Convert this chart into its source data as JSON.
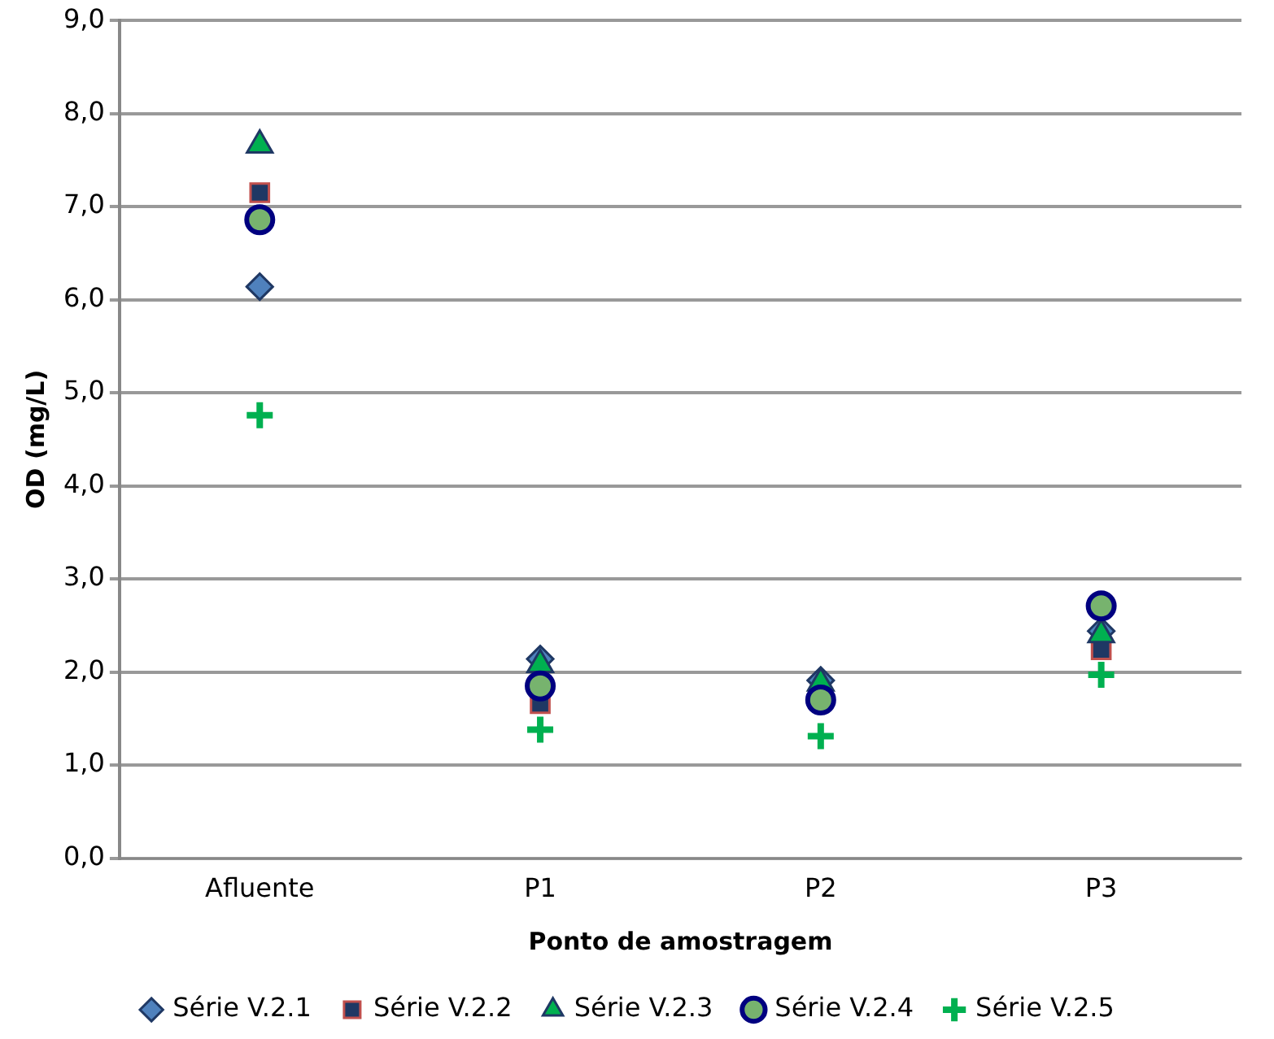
{
  "chart_data": {
    "type": "scatter",
    "xlabel": "Ponto de amostragem",
    "ylabel": "OD (mg/L)",
    "categories": [
      "Afluente",
      "P1",
      "P2",
      "P3"
    ],
    "ylim": [
      0,
      9
    ],
    "yticks": [
      {
        "value": 0,
        "label": "0,0"
      },
      {
        "value": 1,
        "label": "1,0"
      },
      {
        "value": 2,
        "label": "2,0"
      },
      {
        "value": 3,
        "label": "3,0"
      },
      {
        "value": 4,
        "label": "4,0"
      },
      {
        "value": 5,
        "label": "5,0"
      },
      {
        "value": 6,
        "label": "6,0"
      },
      {
        "value": 7,
        "label": "7,0"
      },
      {
        "value": 8,
        "label": "8,0"
      },
      {
        "value": 9,
        "label": "9,0"
      }
    ],
    "grid": "y",
    "legend": "bottom",
    "series": [
      {
        "name": "Série V.2.1",
        "color": "#4f81bd",
        "marker": "diamond",
        "values": [
          6.14,
          2.14,
          1.91,
          2.44
        ]
      },
      {
        "name": "Série V.2.2",
        "color": "#1f3864",
        "marker": "square",
        "values": [
          7.15,
          1.66,
          null,
          2.24
        ]
      },
      {
        "name": "Série V.2.3",
        "color": "#00b050",
        "marker": "triangle",
        "values": [
          7.66,
          2.08,
          1.88,
          2.4
        ]
      },
      {
        "name": "Série V.2.4",
        "color": "#77b36e",
        "marker": "circle",
        "values": [
          6.86,
          1.85,
          1.7,
          2.71
        ]
      },
      {
        "name": "Série V.2.5",
        "color": "#00b050",
        "marker": "cross",
        "values": [
          4.76,
          1.38,
          1.31,
          1.97
        ]
      }
    ]
  }
}
